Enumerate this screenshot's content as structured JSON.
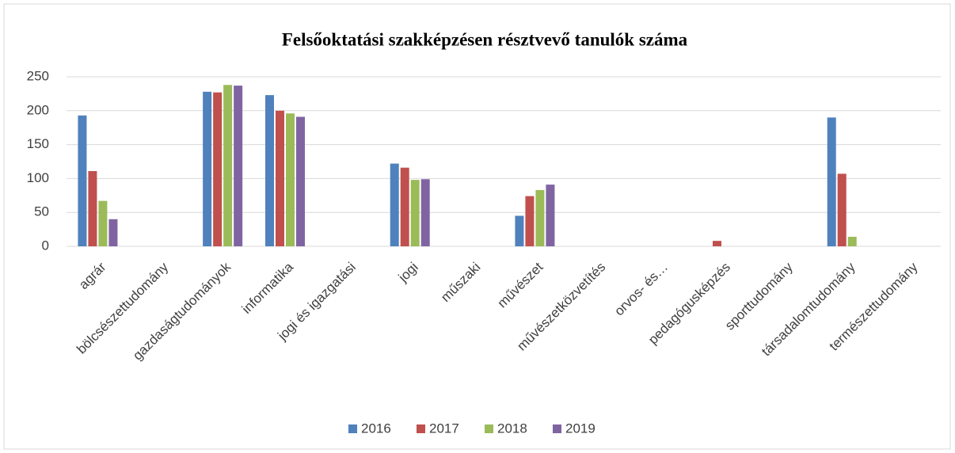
{
  "chart_data": {
    "type": "bar",
    "title": "Felsőoktatási szakképzésen résztvevő tanulók száma",
    "categories": [
      "agrár",
      "bölcsészettudomány",
      "gazdaságtudományok",
      "informatika",
      "jogi és igazgatási",
      "jogi",
      "műszaki",
      "művészet",
      "művészetközvetítés",
      "orvos- és…",
      "pedagógusképzés",
      "sporttudomány",
      "társadalomtudomány",
      "természettudomány"
    ],
    "series": [
      {
        "name": "2016",
        "color": "#4f81bd",
        "values": [
          193,
          0,
          228,
          223,
          0,
          122,
          0,
          45,
          0,
          0,
          0,
          0,
          190,
          0
        ]
      },
      {
        "name": "2017",
        "color": "#c0504d",
        "values": [
          111,
          0,
          227,
          200,
          0,
          116,
          0,
          74,
          0,
          0,
          8,
          0,
          107,
          0
        ]
      },
      {
        "name": "2018",
        "color": "#9bbb59",
        "values": [
          67,
          0,
          238,
          196,
          0,
          98,
          0,
          83,
          0,
          0,
          0,
          0,
          14,
          0
        ]
      },
      {
        "name": "2019",
        "color": "#8064a2",
        "values": [
          40,
          0,
          237,
          191,
          0,
          99,
          0,
          91,
          0,
          0,
          0,
          0,
          0,
          0
        ]
      }
    ],
    "ylim": [
      0,
      250
    ],
    "yticks": [
      0,
      50,
      100,
      150,
      200,
      250
    ],
    "grid": true,
    "legend": "bottom"
  }
}
